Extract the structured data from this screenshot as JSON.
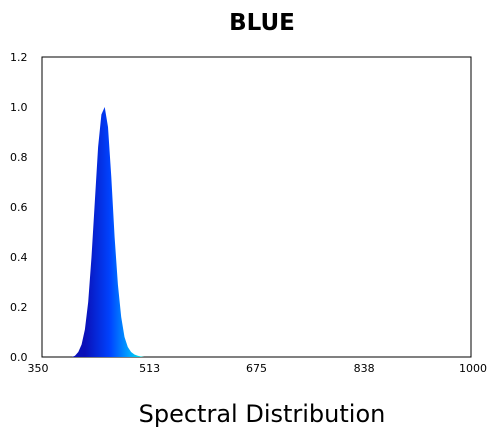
{
  "chart_data": {
    "type": "area",
    "title": "BLUE",
    "xlabel": "Spectral Distribution",
    "ylabel": "",
    "xlim": [
      350,
      1000
    ],
    "ylim": [
      0,
      1.2
    ],
    "x_ticks": [
      "350",
      "513",
      "675",
      "838",
      "1000"
    ],
    "y_ticks": [
      "0.0",
      "0.2",
      "0.4",
      "0.6",
      "0.8",
      "1.0",
      "1.2"
    ],
    "grid": false,
    "series": [
      {
        "x": [
          395,
          400,
          405,
          410,
          415,
          420,
          425,
          430,
          435,
          440,
          445,
          450,
          455,
          460,
          465,
          470,
          475,
          480,
          485,
          490,
          495,
          500,
          505
        ],
        "values": [
          0.0,
          0.005,
          0.02,
          0.05,
          0.11,
          0.22,
          0.4,
          0.62,
          0.84,
          0.97,
          1.0,
          0.92,
          0.72,
          0.48,
          0.29,
          0.16,
          0.08,
          0.04,
          0.02,
          0.01,
          0.005,
          0.002,
          0.0
        ]
      }
    ],
    "colors": {
      "gradient_start": "#0a10b8",
      "gradient_mid": "#0044ff",
      "gradient_light": "#00aaff",
      "gradient_end": "#00ffcc"
    }
  }
}
